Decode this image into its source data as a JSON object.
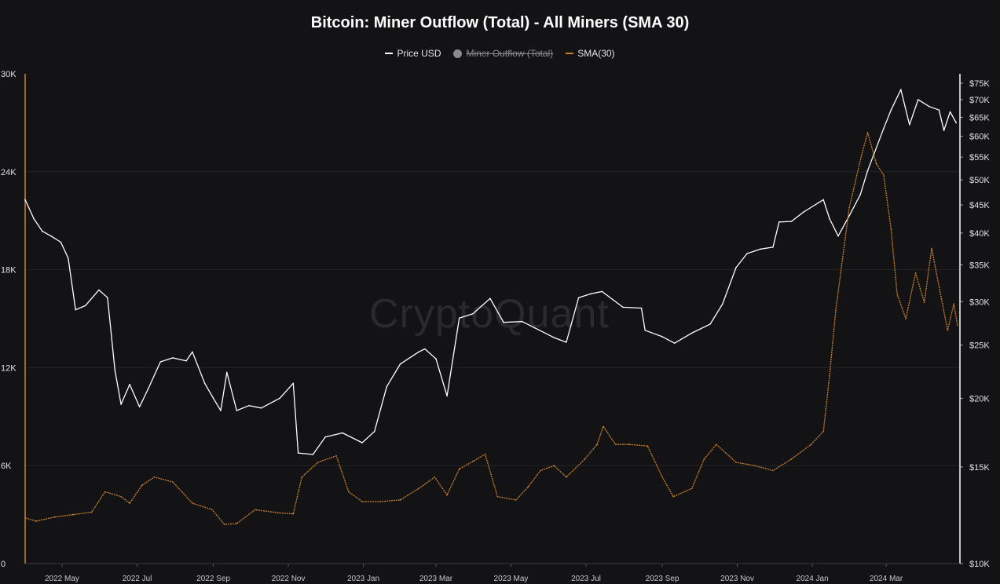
{
  "chart_data": {
    "type": "line",
    "title": "Bitcoin: Miner Outflow (Total) - All Miners (SMA 30)",
    "legend": [
      {
        "name": "Price USD",
        "color": "#ffffff",
        "visible": true
      },
      {
        "name": "Miner Outflow (Total)",
        "color": "#8a8a8e",
        "visible": false
      },
      {
        "name": "SMA(30)",
        "color": "#c9822d",
        "visible": true
      }
    ],
    "legend_placement": "top-center",
    "watermark": "CryptoQuant",
    "x_ticks": [
      "2022 May",
      "2022 Jul",
      "2022 Sep",
      "2022 Nov",
      "2023 Jan",
      "2023 Mar",
      "2023 May",
      "2023 Jul",
      "2023 Sep",
      "2023 Nov",
      "2024 Jan",
      "2024 Mar"
    ],
    "x_range": [
      "2022-04-01",
      "2024-04-30"
    ],
    "left_axis": {
      "ticks": [
        "0",
        "6K",
        "12K",
        "18K",
        "24K",
        "30K"
      ],
      "min": 0,
      "max": 30000,
      "scale": "linear"
    },
    "right_axis": {
      "ticks": [
        "$10K",
        "$15K",
        "$20K",
        "$25K",
        "$30K",
        "$35K",
        "$40K",
        "$45K",
        "$50K",
        "$55K",
        "$60K",
        "$65K",
        "$70K",
        "$75K"
      ],
      "min": 10000,
      "max": 78000,
      "scale": "log"
    },
    "grid": true,
    "series": [
      {
        "name": "Price USD",
        "axis": "right",
        "color": "#ffffff",
        "points": [
          [
            "2022-04-01",
            46000
          ],
          [
            "2022-04-08",
            42500
          ],
          [
            "2022-04-15",
            40300
          ],
          [
            "2022-04-22",
            39500
          ],
          [
            "2022-04-30",
            38500
          ],
          [
            "2022-05-06",
            36000
          ],
          [
            "2022-05-12",
            29000
          ],
          [
            "2022-05-20",
            29500
          ],
          [
            "2022-05-31",
            31500
          ],
          [
            "2022-06-07",
            30500
          ],
          [
            "2022-06-13",
            22500
          ],
          [
            "2022-06-18",
            19500
          ],
          [
            "2022-06-25",
            21200
          ],
          [
            "2022-07-03",
            19300
          ],
          [
            "2022-07-10",
            20800
          ],
          [
            "2022-07-20",
            23300
          ],
          [
            "2022-07-30",
            23700
          ],
          [
            "2022-08-10",
            23400
          ],
          [
            "2022-08-15",
            24300
          ],
          [
            "2022-08-25",
            21300
          ],
          [
            "2022-09-01",
            20000
          ],
          [
            "2022-09-07",
            19000
          ],
          [
            "2022-09-12",
            22300
          ],
          [
            "2022-09-20",
            19000
          ],
          [
            "2022-09-30",
            19400
          ],
          [
            "2022-10-10",
            19200
          ],
          [
            "2022-10-25",
            20000
          ],
          [
            "2022-11-05",
            21300
          ],
          [
            "2022-11-09",
            15900
          ],
          [
            "2022-11-21",
            15800
          ],
          [
            "2022-12-01",
            17000
          ],
          [
            "2022-12-15",
            17300
          ],
          [
            "2022-12-31",
            16600
          ],
          [
            "2023-01-10",
            17400
          ],
          [
            "2023-01-20",
            21000
          ],
          [
            "2023-01-31",
            23100
          ],
          [
            "2023-02-15",
            24300
          ],
          [
            "2023-02-20",
            24600
          ],
          [
            "2023-03-01",
            23600
          ],
          [
            "2023-03-10",
            20200
          ],
          [
            "2023-03-20",
            28000
          ],
          [
            "2023-03-31",
            28500
          ],
          [
            "2023-04-14",
            30400
          ],
          [
            "2023-04-25",
            27500
          ],
          [
            "2023-05-10",
            27600
          ],
          [
            "2023-05-20",
            26900
          ],
          [
            "2023-06-05",
            25800
          ],
          [
            "2023-06-15",
            25300
          ],
          [
            "2023-06-25",
            30500
          ],
          [
            "2023-07-05",
            31000
          ],
          [
            "2023-07-14",
            31300
          ],
          [
            "2023-07-31",
            29300
          ],
          [
            "2023-08-15",
            29200
          ],
          [
            "2023-08-18",
            26600
          ],
          [
            "2023-09-01",
            25900
          ],
          [
            "2023-09-11",
            25200
          ],
          [
            "2023-09-25",
            26300
          ],
          [
            "2023-10-10",
            27300
          ],
          [
            "2023-10-20",
            29700
          ],
          [
            "2023-10-31",
            34600
          ],
          [
            "2023-11-09",
            36700
          ],
          [
            "2023-11-20",
            37400
          ],
          [
            "2023-11-30",
            37700
          ],
          [
            "2023-12-05",
            41900
          ],
          [
            "2023-12-15",
            42000
          ],
          [
            "2023-12-25",
            43700
          ],
          [
            "2024-01-10",
            46000
          ],
          [
            "2024-01-15",
            42500
          ],
          [
            "2024-01-22",
            39500
          ],
          [
            "2024-01-31",
            43000
          ],
          [
            "2024-02-09",
            47000
          ],
          [
            "2024-02-15",
            52000
          ],
          [
            "2024-02-28",
            62000
          ],
          [
            "2024-03-05",
            67000
          ],
          [
            "2024-03-13",
            73000
          ],
          [
            "2024-03-20",
            63000
          ],
          [
            "2024-03-27",
            70000
          ],
          [
            "2024-04-05",
            68000
          ],
          [
            "2024-04-13",
            67000
          ],
          [
            "2024-04-17",
            61500
          ],
          [
            "2024-04-22",
            66500
          ],
          [
            "2024-04-27",
            63500
          ]
        ]
      },
      {
        "name": "SMA(30)",
        "axis": "left",
        "color": "#c9822d",
        "points": [
          [
            "2022-04-01",
            2800
          ],
          [
            "2022-04-10",
            2600
          ],
          [
            "2022-04-25",
            2850
          ],
          [
            "2022-05-10",
            3000
          ],
          [
            "2022-05-25",
            3150
          ],
          [
            "2022-06-05",
            4400
          ],
          [
            "2022-06-18",
            4100
          ],
          [
            "2022-06-25",
            3700
          ],
          [
            "2022-07-05",
            4800
          ],
          [
            "2022-07-15",
            5300
          ],
          [
            "2022-07-30",
            5000
          ],
          [
            "2022-08-15",
            3700
          ],
          [
            "2022-08-31",
            3300
          ],
          [
            "2022-09-10",
            2400
          ],
          [
            "2022-09-20",
            2450
          ],
          [
            "2022-10-05",
            3300
          ],
          [
            "2022-10-25",
            3100
          ],
          [
            "2022-11-05",
            3050
          ],
          [
            "2022-11-12",
            5300
          ],
          [
            "2022-11-25",
            6200
          ],
          [
            "2022-12-10",
            6600
          ],
          [
            "2022-12-20",
            4400
          ],
          [
            "2022-12-31",
            3800
          ],
          [
            "2023-01-15",
            3800
          ],
          [
            "2023-01-31",
            3900
          ],
          [
            "2023-02-15",
            4600
          ],
          [
            "2023-02-28",
            5300
          ],
          [
            "2023-03-10",
            4200
          ],
          [
            "2023-03-20",
            5800
          ],
          [
            "2023-04-01",
            6300
          ],
          [
            "2023-04-10",
            6700
          ],
          [
            "2023-04-20",
            4100
          ],
          [
            "2023-05-05",
            3900
          ],
          [
            "2023-05-15",
            4700
          ],
          [
            "2023-05-25",
            5700
          ],
          [
            "2023-06-05",
            6000
          ],
          [
            "2023-06-15",
            5300
          ],
          [
            "2023-06-30",
            6400
          ],
          [
            "2023-07-10",
            7300
          ],
          [
            "2023-07-15",
            8400
          ],
          [
            "2023-07-25",
            7300
          ],
          [
            "2023-08-05",
            7300
          ],
          [
            "2023-08-20",
            7200
          ],
          [
            "2023-09-01",
            5300
          ],
          [
            "2023-09-10",
            4100
          ],
          [
            "2023-09-25",
            4600
          ],
          [
            "2023-10-05",
            6400
          ],
          [
            "2023-10-15",
            7300
          ],
          [
            "2023-10-31",
            6200
          ],
          [
            "2023-11-15",
            6000
          ],
          [
            "2023-11-30",
            5700
          ],
          [
            "2023-12-15",
            6400
          ],
          [
            "2023-12-31",
            7300
          ],
          [
            "2024-01-10",
            8100
          ],
          [
            "2024-01-15",
            11500
          ],
          [
            "2024-01-20",
            15500
          ],
          [
            "2024-01-31",
            21800
          ],
          [
            "2024-02-10",
            25000
          ],
          [
            "2024-02-15",
            26400
          ],
          [
            "2024-02-22",
            24500
          ],
          [
            "2024-02-28",
            23800
          ],
          [
            "2024-03-05",
            20500
          ],
          [
            "2024-03-10",
            16500
          ],
          [
            "2024-03-17",
            15000
          ],
          [
            "2024-03-25",
            17800
          ],
          [
            "2024-04-01",
            16000
          ],
          [
            "2024-04-07",
            19300
          ],
          [
            "2024-04-15",
            16200
          ],
          [
            "2024-04-20",
            14300
          ],
          [
            "2024-04-25",
            15900
          ],
          [
            "2024-04-28",
            14600
          ]
        ]
      }
    ]
  }
}
